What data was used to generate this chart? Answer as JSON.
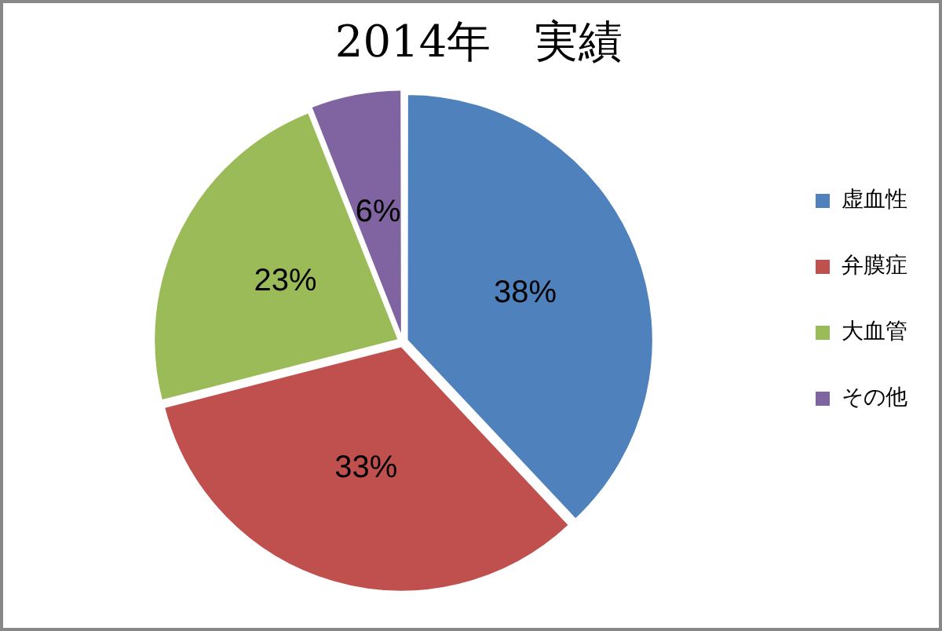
{
  "chart_data": {
    "type": "pie",
    "title": "2014年　実績",
    "categories": [
      "虚血性",
      "弁膜症",
      "大血管",
      "その他"
    ],
    "values": [
      38,
      33,
      23,
      6
    ],
    "colors": [
      "#4f81bd",
      "#c0504d",
      "#9bbb59",
      "#8064a2"
    ],
    "value_labels": [
      "38%",
      "33%",
      "23%",
      "6%"
    ],
    "legend": "right"
  }
}
